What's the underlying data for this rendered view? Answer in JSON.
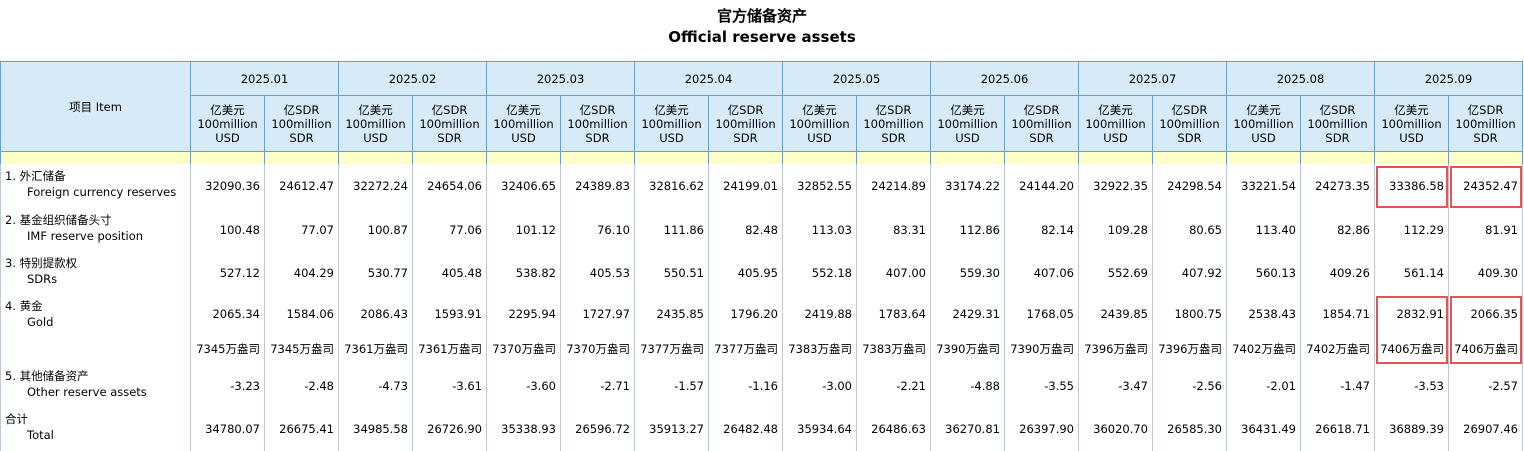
{
  "title_cn": "官方储备资产",
  "title_en": "Official reserve assets",
  "header": {
    "item": "项目 Item",
    "months": [
      "2025.01",
      "2025.02",
      "2025.03",
      "2025.04",
      "2025.05",
      "2025.06",
      "2025.07",
      "2025.08",
      "2025.09"
    ],
    "units": [
      {
        "cn": "亿美元",
        "en1": "100million",
        "en2": "USD"
      },
      {
        "cn": "亿SDR",
        "en1": "100million",
        "en2": "SDR"
      }
    ]
  },
  "rows": [
    {
      "number": "1.",
      "cn": "外汇储备",
      "en": "Foreign currency reserves",
      "values": [
        "32090.36",
        "24612.47",
        "32272.24",
        "24654.06",
        "32406.65",
        "24389.83",
        "32816.62",
        "24199.01",
        "32852.55",
        "24214.89",
        "33174.22",
        "24144.20",
        "32922.35",
        "24298.54",
        "33221.54",
        "24273.35",
        "33386.58",
        "24352.47"
      ]
    },
    {
      "number": "2.",
      "cn": "基金组织储备头寸",
      "en": "IMF reserve position",
      "values": [
        "100.48",
        "77.07",
        "100.87",
        "77.06",
        "101.12",
        "76.10",
        "111.86",
        "82.48",
        "113.03",
        "83.31",
        "112.86",
        "82.14",
        "109.28",
        "80.65",
        "113.40",
        "82.86",
        "112.29",
        "81.91"
      ]
    },
    {
      "number": "3.",
      "cn": "特别提款权",
      "en": "SDRs",
      "values": [
        "527.12",
        "404.29",
        "530.77",
        "405.48",
        "538.82",
        "405.53",
        "550.51",
        "405.95",
        "552.18",
        "407.00",
        "559.30",
        "407.06",
        "552.69",
        "407.92",
        "560.13",
        "409.26",
        "561.14",
        "409.30"
      ]
    },
    {
      "number": "4.",
      "cn": "黄金",
      "en": "Gold",
      "values": [
        "2065.34",
        "1584.06",
        "2086.43",
        "1593.91",
        "2295.94",
        "1727.97",
        "2435.85",
        "1796.20",
        "2419.88",
        "1783.64",
        "2429.31",
        "1768.05",
        "2439.85",
        "1800.75",
        "2538.43",
        "1854.71",
        "2832.91",
        "2066.35"
      ],
      "ounces": [
        "7345万盎司",
        "7345万盎司",
        "7361万盎司",
        "7361万盎司",
        "7370万盎司",
        "7370万盎司",
        "7377万盎司",
        "7377万盎司",
        "7383万盎司",
        "7383万盎司",
        "7390万盎司",
        "7390万盎司",
        "7396万盎司",
        "7396万盎司",
        "7402万盎司",
        "7402万盎司",
        "7406万盎司",
        "7406万盎司"
      ]
    },
    {
      "number": "5.",
      "cn": "其他储备资产",
      "en": "Other reserve assets",
      "values": [
        "-3.23",
        "-2.48",
        "-4.73",
        "-3.61",
        "-3.60",
        "-2.71",
        "-1.57",
        "-1.16",
        "-3.00",
        "-2.21",
        "-4.88",
        "-3.55",
        "-3.47",
        "-2.56",
        "-2.01",
        "-1.47",
        "-3.53",
        "-2.57"
      ]
    },
    {
      "cn": "合计",
      "en": "Total",
      "values": [
        "34780.07",
        "26675.41",
        "34985.58",
        "26726.90",
        "35338.93",
        "26596.72",
        "35913.27",
        "26482.48",
        "35934.64",
        "26486.63",
        "36270.81",
        "26397.90",
        "36020.70",
        "26585.30",
        "36431.49",
        "26618.71",
        "36889.39",
        "26907.46"
      ]
    }
  ]
}
